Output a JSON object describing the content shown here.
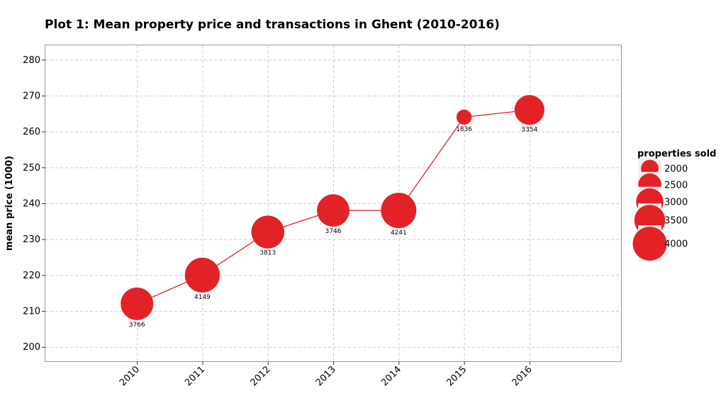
{
  "chart_data": {
    "type": "line",
    "title": "Plot 1: Mean property price and transactions in Ghent (2010-2016)",
    "xlabel": "",
    "ylabel": "mean price (1000)",
    "x": [
      2010,
      2011,
      2012,
      2013,
      2014,
      2015,
      2016
    ],
    "categories": [
      "2010",
      "2011",
      "2012",
      "2013",
      "2014",
      "2015",
      "2016"
    ],
    "series": [
      {
        "name": "mean price",
        "values": [
          212,
          220,
          232,
          238,
          238,
          264,
          266
        ],
        "sizes": [
          3766,
          4149,
          3813,
          3746,
          4241,
          1836,
          3354
        ],
        "size_labels": [
          "3766",
          "4149",
          "3813",
          "3746",
          "4241",
          "1836",
          "3354"
        ]
      }
    ],
    "ylim": [
      196,
      284
    ],
    "yticks": [
      200,
      210,
      220,
      230,
      240,
      250,
      260,
      270,
      280
    ],
    "ytick_labels": [
      "200",
      "210",
      "220",
      "230",
      "240",
      "250",
      "260",
      "270",
      "280"
    ],
    "xlim": [
      2008.6,
      2017.4
    ],
    "grid": true,
    "color": "#e32227",
    "legend": {
      "title": "properties sold",
      "position": "right",
      "items": [
        {
          "value": 2000,
          "label": "2000"
        },
        {
          "value": 2500,
          "label": "2500"
        },
        {
          "value": 3000,
          "label": "3000"
        },
        {
          "value": 3500,
          "label": "3500"
        },
        {
          "value": 4000,
          "label": "4000"
        }
      ]
    }
  }
}
